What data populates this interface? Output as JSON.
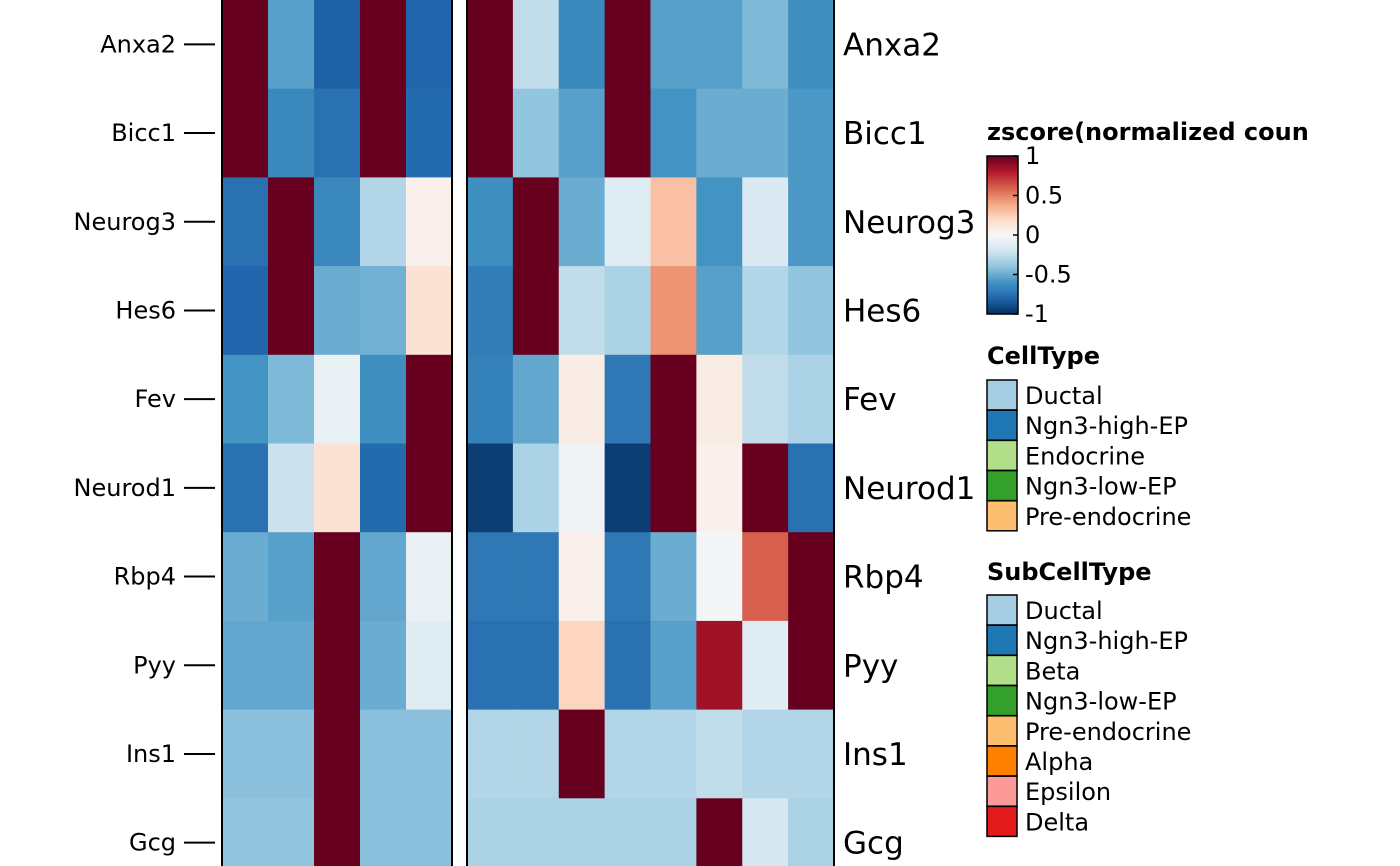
{
  "chart_data": {
    "type": "heatmap",
    "genes": [
      "Anxa2",
      "Bicc1",
      "Neurog3",
      "Hes6",
      "Fev",
      "Neurod1",
      "Rbp4",
      "Pyy",
      "Ins1",
      "Gcg"
    ],
    "groups": [
      {
        "name": "CellType",
        "columns": [
          "Ductal",
          "Ngn3-high-EP",
          "Endocrine",
          "Ngn3-low-EP",
          "Pre-endocrine"
        ],
        "values": [
          [
            1.0,
            -0.55,
            -0.82,
            1.0,
            -0.8
          ],
          [
            1.0,
            -0.65,
            -0.75,
            1.0,
            -0.78
          ],
          [
            -0.75,
            1.0,
            -0.65,
            -0.3,
            0.05
          ],
          [
            -0.8,
            1.0,
            -0.5,
            -0.48,
            0.15
          ],
          [
            -0.6,
            -0.45,
            -0.08,
            -0.62,
            1.0
          ],
          [
            -0.75,
            -0.22,
            0.15,
            -0.78,
            1.0
          ],
          [
            -0.5,
            -0.55,
            1.0,
            -0.52,
            -0.08
          ],
          [
            -0.52,
            -0.52,
            1.0,
            -0.5,
            -0.12
          ],
          [
            -0.42,
            -0.42,
            1.0,
            -0.42,
            -0.42
          ],
          [
            -0.4,
            -0.4,
            1.0,
            -0.42,
            -0.42
          ]
        ]
      },
      {
        "name": "SubCellType",
        "columns": [
          "Ductal",
          "Ngn3-high-EP",
          "Beta",
          "Ngn3-low-EP",
          "Pre-endocrine",
          "Alpha",
          "Epsilon",
          "Delta"
        ],
        "values": [
          [
            1.0,
            -0.25,
            -0.65,
            1.0,
            -0.55,
            -0.55,
            -0.45,
            -0.62
          ],
          [
            1.0,
            -0.4,
            -0.55,
            1.0,
            -0.6,
            -0.5,
            -0.5,
            -0.58
          ],
          [
            -0.62,
            1.0,
            -0.5,
            -0.12,
            0.3,
            -0.6,
            -0.15,
            -0.58
          ],
          [
            -0.7,
            1.0,
            -0.25,
            -0.32,
            0.45,
            -0.55,
            -0.3,
            -0.4
          ],
          [
            -0.68,
            -0.52,
            0.08,
            -0.72,
            1.0,
            0.08,
            -0.25,
            -0.32
          ],
          [
            -0.95,
            -0.32,
            -0.04,
            -0.95,
            1.0,
            0.05,
            1.0,
            -0.75
          ],
          [
            -0.72,
            -0.72,
            0.05,
            -0.72,
            -0.5,
            -0.02,
            0.6,
            1.0
          ],
          [
            -0.75,
            -0.75,
            0.22,
            -0.75,
            -0.55,
            0.85,
            -0.12,
            1.0
          ],
          [
            -0.3,
            -0.3,
            1.0,
            -0.3,
            -0.3,
            -0.25,
            -0.3,
            -0.3
          ],
          [
            -0.32,
            -0.32,
            -0.32,
            -0.32,
            -0.32,
            1.0,
            -0.18,
            -0.32
          ]
        ]
      }
    ],
    "colorbar": {
      "title": "zscore(normalized coun",
      "min": -1,
      "max": 1,
      "ticks": [
        "1",
        "0.5",
        "0",
        "-0.5",
        "-1"
      ],
      "tick_values": [
        1,
        0.5,
        0,
        -0.5,
        -1
      ],
      "colors": [
        "#053061",
        "#2166ac",
        "#4393c3",
        "#92c5de",
        "#d1e5f0",
        "#f7f7f7",
        "#fddbc7",
        "#f4a582",
        "#d6604d",
        "#b2182b",
        "#67001f"
      ]
    }
  },
  "legends": [
    {
      "title": "CellType",
      "items": [
        {
          "label": "Ductal",
          "color": "#a6cee3"
        },
        {
          "label": "Ngn3-high-EP",
          "color": "#1f78b4"
        },
        {
          "label": "Endocrine",
          "color": "#b2df8a"
        },
        {
          "label": "Ngn3-low-EP",
          "color": "#33a02c"
        },
        {
          "label": "Pre-endocrine",
          "color": "#fdbf6f"
        }
      ]
    },
    {
      "title": "SubCellType",
      "items": [
        {
          "label": "Ductal",
          "color": "#a6cee3"
        },
        {
          "label": "Ngn3-high-EP",
          "color": "#1f78b4"
        },
        {
          "label": "Beta",
          "color": "#b2df8a"
        },
        {
          "label": "Ngn3-low-EP",
          "color": "#33a02c"
        },
        {
          "label": "Pre-endocrine",
          "color": "#fdbf6f"
        },
        {
          "label": "Alpha",
          "color": "#ff7f00"
        },
        {
          "label": "Epsilon",
          "color": "#fb9a99"
        },
        {
          "label": "Delta",
          "color": "#e31a1c"
        }
      ]
    }
  ]
}
